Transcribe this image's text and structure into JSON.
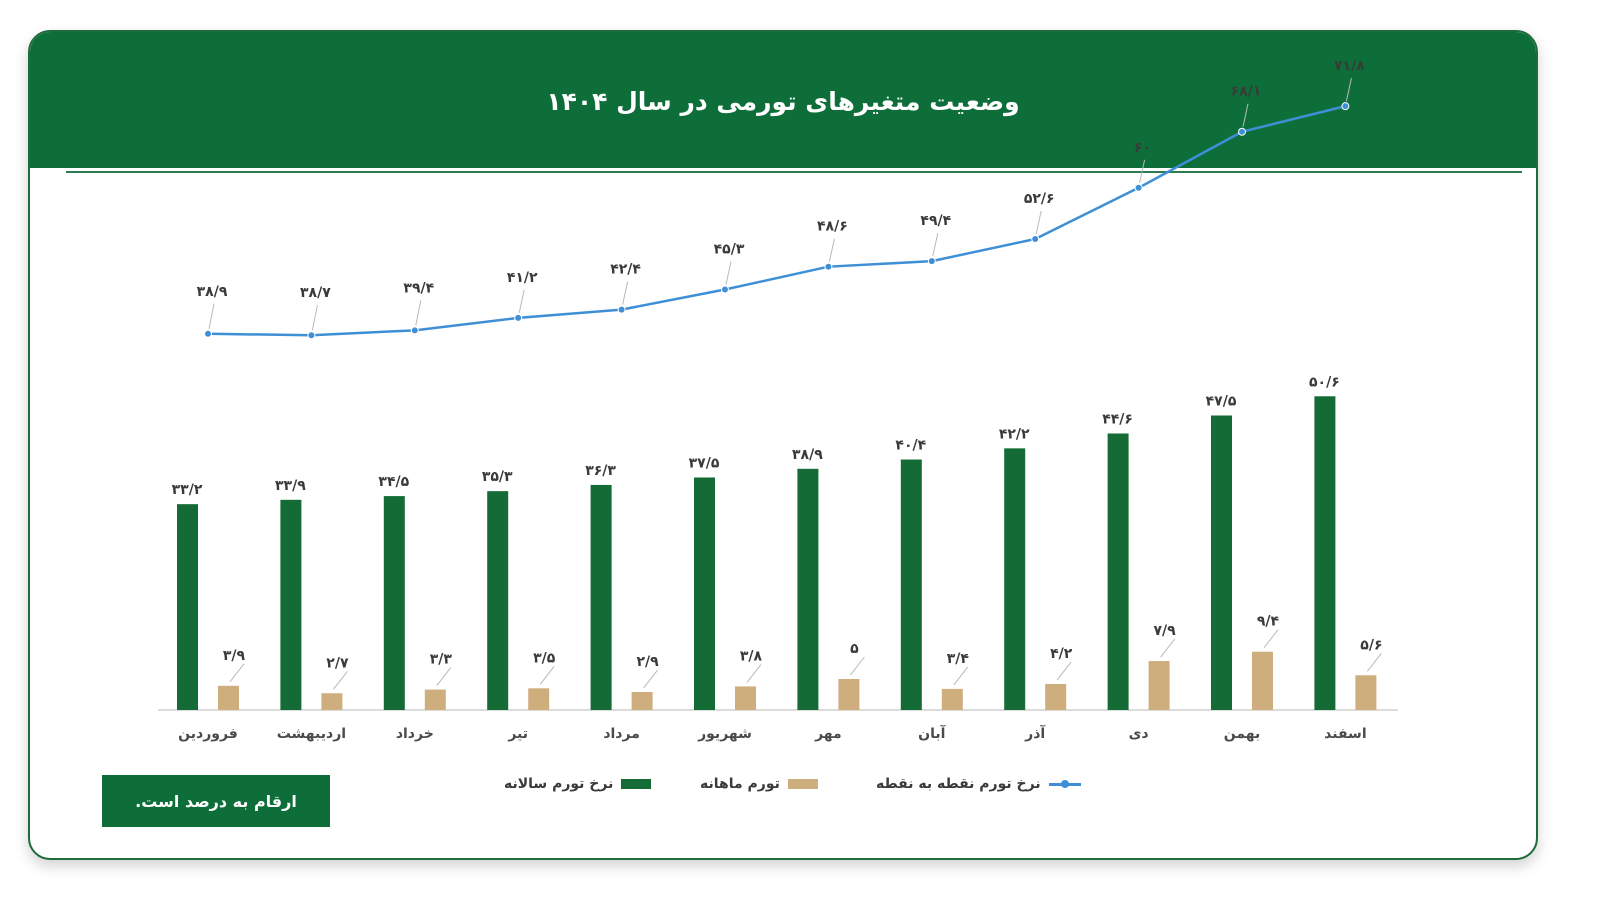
{
  "header": {
    "title": "وضعیت متغیرهای تورمی در سال ۱۴۰۴"
  },
  "note": "ارقام به درصد است.",
  "colors": {
    "header": "#0d6e39",
    "annual": "#146b36",
    "monthly": "#cfae7e",
    "p2p": "#3e8fd6",
    "text": "#3a3a3a"
  },
  "legend": {
    "annual": "نرخ تورم سالانه",
    "monthly": "تورم ماهانه",
    "p2p": "نرخ تورم نقطه به نقطه"
  },
  "chart_data": {
    "type": "bar",
    "direction": "rtl",
    "categories": [
      "فروردین",
      "اردیبهشت",
      "خرداد",
      "تیر",
      "مرداد",
      "شهریور",
      "مهر",
      "آبان",
      "آذر",
      "دی",
      "بهمن",
      "اسفند"
    ],
    "series": [
      {
        "name": "نرخ تورم سالانه",
        "type": "bar",
        "values": [
          33.2,
          33.9,
          34.5,
          35.3,
          36.3,
          37.5,
          38.9,
          40.4,
          42.2,
          44.6,
          47.5,
          50.6
        ],
        "labels": [
          "۳۳/۲",
          "۳۳/۹",
          "۳۴/۵",
          "۳۵/۳",
          "۳۶/۳",
          "۳۷/۵",
          "۳۸/۹",
          "۴۰/۴",
          "۴۲/۲",
          "۴۴/۶",
          "۴۷/۵",
          "۵۰/۶"
        ]
      },
      {
        "name": "تورم ماهانه",
        "type": "bar",
        "values": [
          3.9,
          2.7,
          3.3,
          3.5,
          2.9,
          3.8,
          5,
          3.4,
          4.2,
          7.9,
          9.4,
          5.6
        ],
        "labels": [
          "۳/۹",
          "۲/۷",
          "۳/۳",
          "۳/۵",
          "۲/۹",
          "۳/۸",
          "۵",
          "۳/۴",
          "۴/۲",
          "۷/۹",
          "۹/۴",
          "۵/۶"
        ]
      },
      {
        "name": "نرخ تورم نقطه به نقطه",
        "type": "line",
        "values": [
          38.9,
          38.7,
          39.4,
          41.2,
          42.4,
          45.3,
          48.6,
          49.4,
          52.6,
          60,
          68.1,
          71.8
        ],
        "labels": [
          "۳۸/۹",
          "۳۸/۷",
          "۳۹/۴",
          "۴۱/۲",
          "۴۲/۴",
          "۴۵/۳",
          "۴۸/۶",
          "۴۹/۴",
          "۵۲/۶",
          "۶۰",
          "۶۸/۱",
          "۷۱/۸"
        ]
      }
    ],
    "legend_position": "bottom",
    "grid": false
  }
}
